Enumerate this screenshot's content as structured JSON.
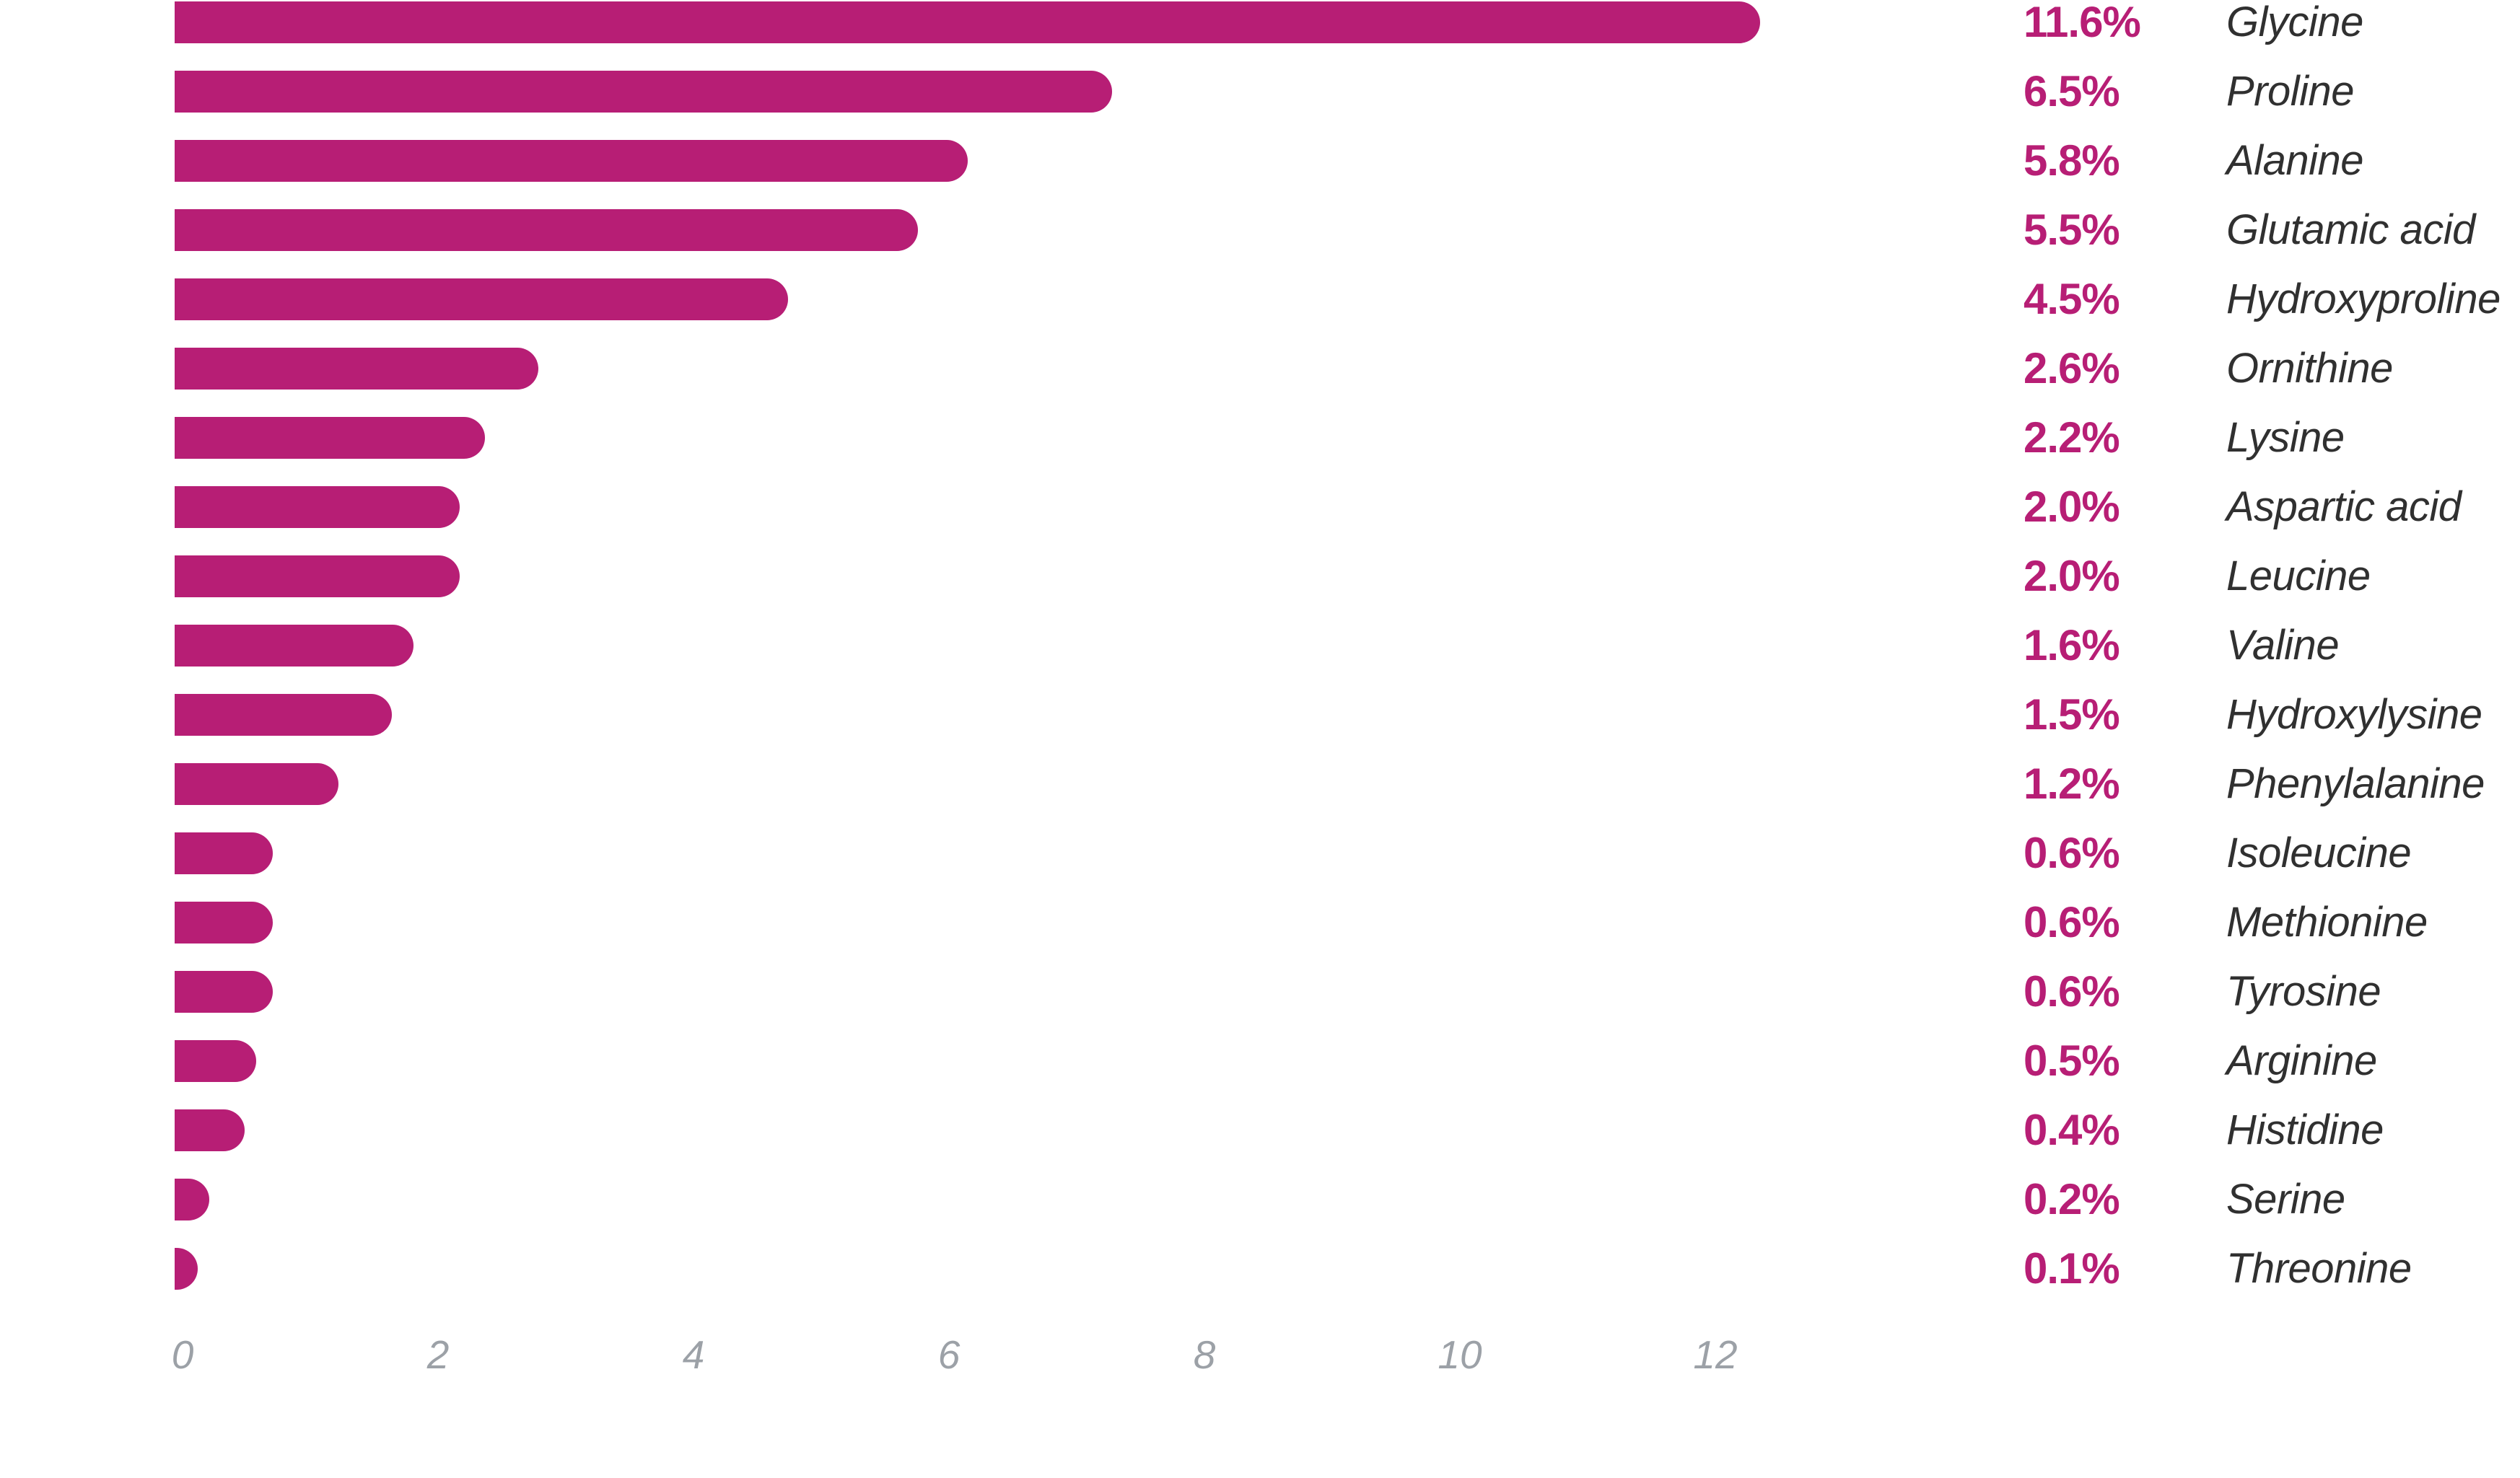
{
  "chart_data": {
    "type": "bar",
    "orientation": "horizontal",
    "title": "",
    "xlabel": "",
    "ylabel": "",
    "categories": [
      "Glycine",
      "Proline",
      "Alanine",
      "Glutamic acid",
      "Hydroxyproline",
      "Ornithine",
      "Lysine",
      "Aspartic acid",
      "Leucine",
      "Valine",
      "Hydroxylysine",
      "Phenylalanine",
      "Isoleucine",
      "Methionine",
      "Tyrosine",
      "Arginine",
      "Histidine",
      "Serine",
      "Threonine"
    ],
    "values": [
      11.6,
      6.5,
      5.8,
      5.5,
      4.5,
      2.6,
      2.2,
      2.0,
      2.0,
      1.6,
      1.5,
      1.2,
      0.6,
      0.6,
      0.6,
      0.5,
      0.4,
      0.2,
      0.1
    ],
    "value_labels": [
      "11.6%",
      "6.5%",
      "5.8%",
      "5.5%",
      "4.5%",
      "2.6%",
      "2.2%",
      "2.0%",
      "2.0%",
      "1.6%",
      "1.5%",
      "1.2%",
      "0.6%",
      "0.6%",
      "0.6%",
      "0.5%",
      "0.4%",
      "0.2%",
      "0.1%"
    ],
    "x_ticks": [
      0,
      2,
      4,
      6,
      8,
      10,
      12
    ],
    "xlim": [
      0,
      12
    ],
    "grid": false,
    "legend": null,
    "bar_display_units": [
      12.41,
      7.34,
      6.21,
      5.82,
      4.8,
      2.85,
      2.43,
      2.23,
      2.23,
      1.87,
      1.7,
      1.28,
      0.77,
      0.77,
      0.77,
      0.64,
      0.55,
      0.27,
      0.18
    ],
    "colors": {
      "bar": "#B71E75",
      "value_label": "#B71E75",
      "category_label": "#303030",
      "axis_tick": "#9CA1A7",
      "background": "#FFFFFF"
    }
  }
}
